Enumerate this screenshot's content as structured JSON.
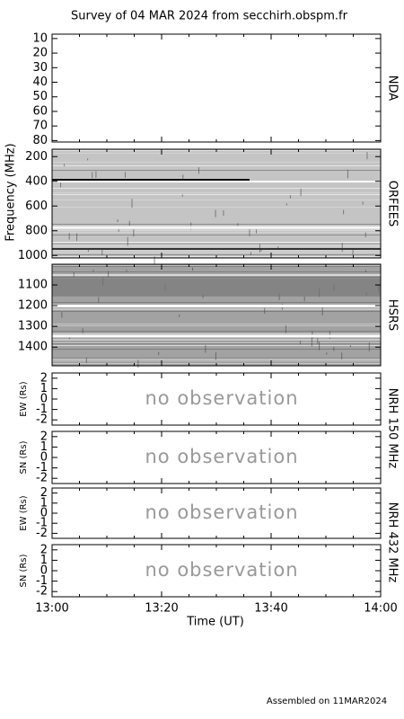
{
  "title": "Survey of 04 MAR 2024 from secchirh.obspm.fr",
  "ylabel": "Frequency (MHz)",
  "xlabel": "Time (UT)",
  "footer": "Assembled on 11MAR2024",
  "xlim": [
    0,
    60
  ],
  "xticks": [
    {
      "value": 0,
      "label": "13:00"
    },
    {
      "value": 20,
      "label": "13:20"
    },
    {
      "value": 40,
      "label": "13:40"
    },
    {
      "value": 60,
      "label": "14:00"
    }
  ],
  "chart_data": [
    {
      "type": "spectrogram",
      "side_label": "NDA",
      "ylim": [
        7,
        81
      ],
      "yticks": [
        10,
        20,
        30,
        40,
        50,
        60,
        70,
        80
      ]
    },
    {
      "type": "spectrogram",
      "side_label": "ORFEES",
      "ylim": [
        140,
        1020
      ],
      "yticks": [
        200,
        400,
        600,
        800,
        1000
      ],
      "shade": "#c4c4c4"
    },
    {
      "type": "spectrogram",
      "side_label": "HSRS",
      "ylim": [
        1000,
        1490
      ],
      "yticks": [
        1100,
        1200,
        1300,
        1400
      ],
      "shade": "#a2a2a2"
    },
    {
      "type": "empty",
      "ylabel": "EW (Rs)",
      "side_label": "NRH 150 MHz",
      "annotation": "no observation",
      "ylim": [
        2.5,
        -2.5
      ],
      "yticks": [
        2,
        1,
        0,
        -1,
        -2
      ]
    },
    {
      "type": "empty",
      "ylabel": "SN (Rs)",
      "annotation": "no observation",
      "ylim": [
        2.5,
        -2.5
      ],
      "yticks": [
        2,
        1,
        0,
        -1,
        -2
      ]
    },
    {
      "type": "empty",
      "ylabel": "EW (Rs)",
      "side_label": "NRH 432 MHz",
      "annotation": "no observation",
      "ylim": [
        2.5,
        -2.5
      ],
      "yticks": [
        2,
        1,
        0,
        -1,
        -2
      ]
    },
    {
      "type": "empty",
      "ylabel": "SN (Rs)",
      "annotation": "no observation",
      "ylim": [
        2.5,
        -2.5
      ],
      "yticks": [
        2,
        1,
        0,
        -1,
        -2
      ]
    }
  ]
}
